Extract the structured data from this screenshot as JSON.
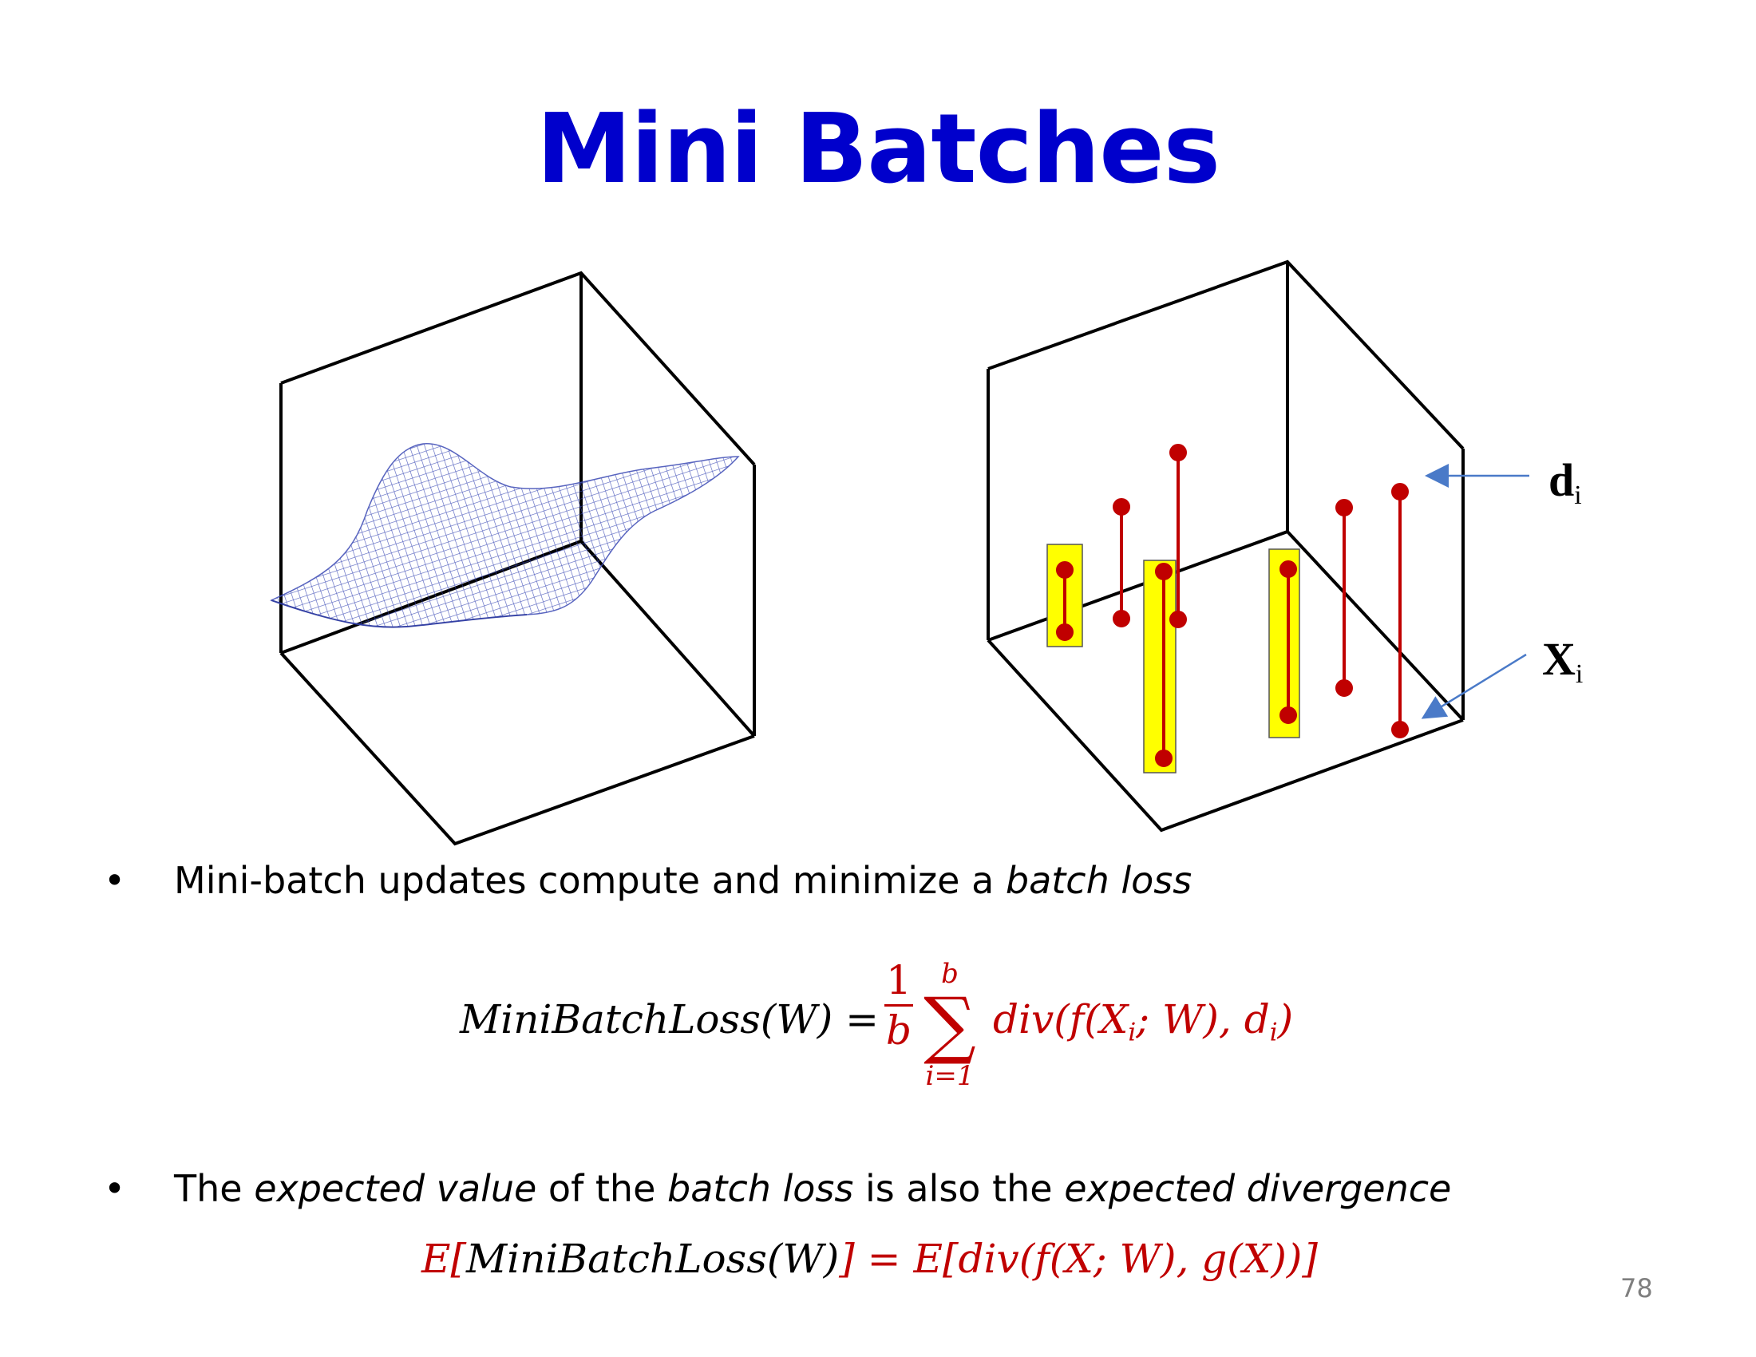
{
  "slide": {
    "title": "Mini Batches",
    "page_number": "78"
  },
  "figure_left": {
    "description_icon": "error-surface-mesh-icon"
  },
  "figure_right": {
    "label_d_main": "d",
    "label_d_sub": "i",
    "label_x_main": "X",
    "label_x_sub": "i"
  },
  "bullets": [
    {
      "pre": "Mini-batch updates compute and minimize a ",
      "em": "batch loss"
    },
    {
      "p1": "The ",
      "e1": "expected value",
      "p2": " of the ",
      "e2": "batch loss",
      "p3": " is also the ",
      "e3": "expected divergence"
    }
  ],
  "equation1": {
    "lhs": "MiniBatchLoss(W) =",
    "frac_num": "1",
    "frac_den": "b",
    "sum_upper": "b",
    "sum_symbol": "∑",
    "sum_lower": "i=1",
    "rhs_pre": "div(f(X",
    "rhs_sub1": "i",
    "rhs_mid": "; W), d",
    "rhs_sub2": "i",
    "rhs_end": ")"
  },
  "equation2": {
    "e_open": "E[",
    "inner": "MiniBatchLoss(W)",
    "e_close_eq": "] = E[",
    "div": "div(",
    "f_part": "f(X; W), g(X)",
    "close": ")]"
  }
}
